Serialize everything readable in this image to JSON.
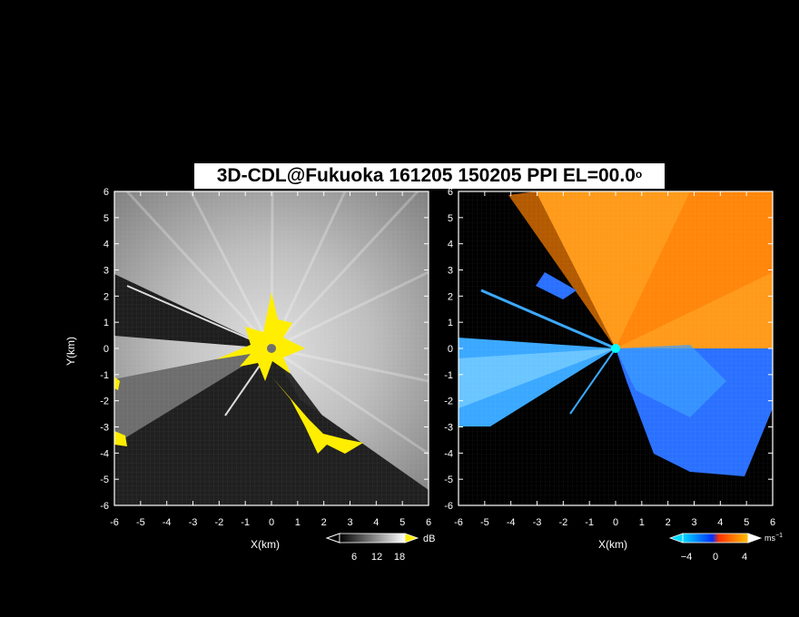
{
  "title": {
    "main": "3D-CDL@Fukuoka 161205 150205 PPI EL=00.0",
    "degree": "o"
  },
  "axes": {
    "x_label": "X(km)",
    "y_label": "Y(km)",
    "x_range": [
      -6,
      6
    ],
    "y_range": [
      -6,
      6
    ],
    "ticks": [
      "-6",
      "-5",
      "-4",
      "-3",
      "-2",
      "-1",
      "0",
      "1",
      "2",
      "3",
      "4",
      "5",
      "6"
    ]
  },
  "left_panel": {
    "colorbar_unit": "dB",
    "colorbar_ticks": [
      "6",
      "12",
      "18"
    ],
    "colorscale": [
      "#000000",
      "#ffffff"
    ],
    "overflow_color": "#ffee00"
  },
  "right_panel": {
    "colorbar_unit": "ms",
    "colorbar_unit_sup": "−1",
    "colorbar_ticks": [
      "−4",
      "0",
      "4"
    ],
    "colorscale": [
      "#00d8ff",
      "#0030ff",
      "#ff3000",
      "#ffc000"
    ]
  }
}
